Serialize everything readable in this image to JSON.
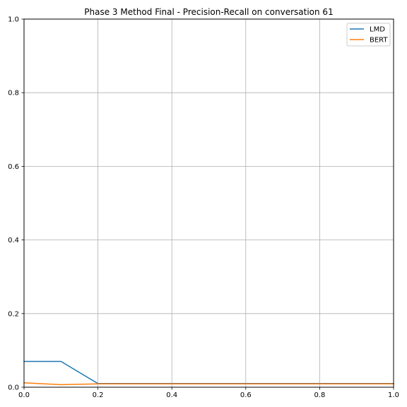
{
  "chart_data": {
    "type": "line",
    "title": "Phase 3 Method Final - Precision-Recall on conversation 61",
    "xlabel": "",
    "ylabel": "",
    "xlim": [
      0,
      1
    ],
    "ylim": [
      0,
      1
    ],
    "grid": true,
    "legend_position": "top-right",
    "xticks": [
      "0.0",
      "0.2",
      "0.4",
      "0.6",
      "0.8",
      "1.0"
    ],
    "yticks": [
      "0.0",
      "0.2",
      "0.4",
      "0.6",
      "0.8",
      "1.0"
    ],
    "series": [
      {
        "name": "LMD",
        "color": "#1f77b4",
        "x": [
          0.0,
          0.1,
          0.2,
          0.3,
          0.4,
          0.5,
          0.6,
          0.7,
          0.8,
          0.9,
          1.0
        ],
        "y": [
          0.07,
          0.07,
          0.01,
          0.01,
          0.01,
          0.01,
          0.01,
          0.01,
          0.01,
          0.01,
          0.01
        ]
      },
      {
        "name": "BERT",
        "color": "#ff7f0e",
        "x": [
          0.0,
          0.1,
          0.2,
          0.3,
          0.4,
          0.5,
          0.6,
          0.7,
          0.8,
          0.9,
          1.0
        ],
        "y": [
          0.012,
          0.007,
          0.009,
          0.009,
          0.009,
          0.009,
          0.009,
          0.009,
          0.009,
          0.009,
          0.009
        ]
      }
    ]
  }
}
